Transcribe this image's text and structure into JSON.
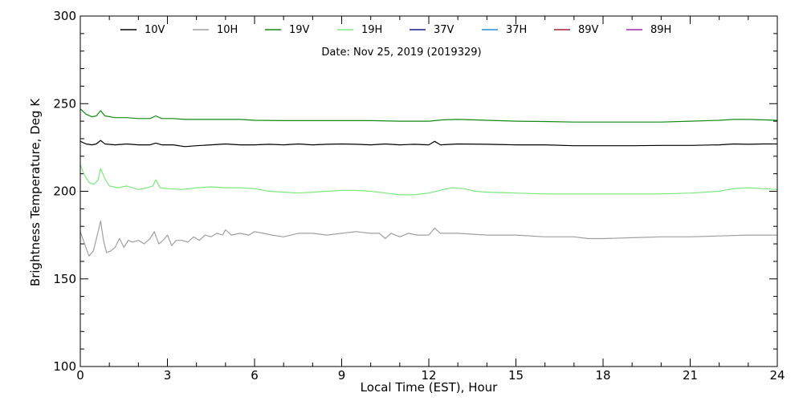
{
  "chart_data": {
    "type": "line",
    "subtitle": "Date: Nov 25, 2019 (2019329)",
    "xlabel": "Local Time (EST), Hour",
    "ylabel": "Brightness Temperature, Deg K",
    "xlim": [
      0,
      24
    ],
    "ylim": [
      100,
      300
    ],
    "x_ticks": [
      "0",
      "3",
      "6",
      "9",
      "12",
      "15",
      "18",
      "21",
      "24"
    ],
    "y_ticks": [
      "100",
      "150",
      "200",
      "250",
      "300"
    ],
    "grid": false,
    "legend_position": "top",
    "series": [
      {
        "name": "10V",
        "color": "#000000",
        "points": [
          [
            0,
            228.5
          ],
          [
            0.2,
            227
          ],
          [
            0.4,
            226.5
          ],
          [
            0.55,
            227
          ],
          [
            0.7,
            229
          ],
          [
            0.85,
            227
          ],
          [
            1.2,
            226.5
          ],
          [
            1.6,
            227
          ],
          [
            2.0,
            226.5
          ],
          [
            2.4,
            226.5
          ],
          [
            2.6,
            227.5
          ],
          [
            2.8,
            226.5
          ],
          [
            3.2,
            226.5
          ],
          [
            3.6,
            225.5
          ],
          [
            4.0,
            226
          ],
          [
            4.5,
            226.5
          ],
          [
            5.0,
            227
          ],
          [
            5.5,
            226.5
          ],
          [
            6.0,
            226.5
          ],
          [
            6.5,
            226.8
          ],
          [
            7.0,
            226.5
          ],
          [
            7.5,
            227
          ],
          [
            8.0,
            226.5
          ],
          [
            8.5,
            226.8
          ],
          [
            9.0,
            227
          ],
          [
            9.5,
            226.8
          ],
          [
            10.0,
            226.5
          ],
          [
            10.5,
            227
          ],
          [
            11.0,
            226.5
          ],
          [
            11.5,
            226.8
          ],
          [
            12.0,
            226.5
          ],
          [
            12.2,
            228.5
          ],
          [
            12.4,
            226.5
          ],
          [
            13.0,
            227
          ],
          [
            14.0,
            226.8
          ],
          [
            15.0,
            226.5
          ],
          [
            16.0,
            226.5
          ],
          [
            17.0,
            226
          ],
          [
            17.5,
            226
          ],
          [
            18.0,
            226
          ],
          [
            19.0,
            226
          ],
          [
            20.0,
            226.2
          ],
          [
            21.0,
            226.2
          ],
          [
            22.0,
            226.5
          ],
          [
            22.5,
            227
          ],
          [
            23.0,
            226.8
          ],
          [
            23.5,
            227
          ],
          [
            24.0,
            227
          ]
        ]
      },
      {
        "name": "10H",
        "color": "#a0a0a0",
        "points": [
          [
            0,
            177
          ],
          [
            0.15,
            170
          ],
          [
            0.3,
            163
          ],
          [
            0.45,
            166
          ],
          [
            0.6,
            176
          ],
          [
            0.7,
            183
          ],
          [
            0.8,
            172
          ],
          [
            0.9,
            165
          ],
          [
            1.05,
            166
          ],
          [
            1.2,
            168
          ],
          [
            1.35,
            173
          ],
          [
            1.5,
            168
          ],
          [
            1.65,
            172
          ],
          [
            1.8,
            171
          ],
          [
            2.0,
            172
          ],
          [
            2.2,
            170
          ],
          [
            2.4,
            173
          ],
          [
            2.55,
            177
          ],
          [
            2.7,
            170
          ],
          [
            2.85,
            172
          ],
          [
            3.0,
            175
          ],
          [
            3.15,
            169
          ],
          [
            3.3,
            172
          ],
          [
            3.5,
            172
          ],
          [
            3.7,
            171
          ],
          [
            3.9,
            174
          ],
          [
            4.1,
            172
          ],
          [
            4.3,
            175
          ],
          [
            4.5,
            174
          ],
          [
            4.7,
            176
          ],
          [
            4.9,
            175
          ],
          [
            5.0,
            178
          ],
          [
            5.2,
            175
          ],
          [
            5.5,
            176
          ],
          [
            5.8,
            175
          ],
          [
            6.0,
            177
          ],
          [
            6.3,
            176
          ],
          [
            6.6,
            175
          ],
          [
            7.0,
            174
          ],
          [
            7.5,
            176
          ],
          [
            8.0,
            176
          ],
          [
            8.5,
            175
          ],
          [
            9.0,
            176
          ],
          [
            9.5,
            177
          ],
          [
            10.0,
            176
          ],
          [
            10.3,
            176
          ],
          [
            10.5,
            173
          ],
          [
            10.7,
            176
          ],
          [
            11.0,
            174
          ],
          [
            11.3,
            176
          ],
          [
            11.6,
            175
          ],
          [
            12.0,
            175
          ],
          [
            12.2,
            179
          ],
          [
            12.4,
            176
          ],
          [
            13.0,
            176
          ],
          [
            14.0,
            175
          ],
          [
            15.0,
            175
          ],
          [
            16.0,
            174
          ],
          [
            17.0,
            174
          ],
          [
            17.5,
            173
          ],
          [
            18.0,
            173
          ],
          [
            19.0,
            173.5
          ],
          [
            20.0,
            174
          ],
          [
            21.0,
            174
          ],
          [
            22.0,
            174.5
          ],
          [
            23.0,
            175
          ],
          [
            24.0,
            175
          ]
        ]
      },
      {
        "name": "19V",
        "color": "#138a13",
        "points": [
          [
            0,
            247
          ],
          [
            0.2,
            244
          ],
          [
            0.4,
            242.5
          ],
          [
            0.55,
            243
          ],
          [
            0.7,
            246
          ],
          [
            0.85,
            243
          ],
          [
            1.2,
            242
          ],
          [
            1.6,
            242
          ],
          [
            2.0,
            241.5
          ],
          [
            2.4,
            241.5
          ],
          [
            2.6,
            243
          ],
          [
            2.8,
            241.5
          ],
          [
            3.2,
            241.5
          ],
          [
            3.6,
            241
          ],
          [
            4.0,
            241
          ],
          [
            4.5,
            241
          ],
          [
            5.0,
            241
          ],
          [
            5.5,
            241
          ],
          [
            6.0,
            240.5
          ],
          [
            7.0,
            240.3
          ],
          [
            8.0,
            240.3
          ],
          [
            9.0,
            240.3
          ],
          [
            10.0,
            240.3
          ],
          [
            11.0,
            240
          ],
          [
            12.0,
            240
          ],
          [
            12.5,
            240.8
          ],
          [
            13.0,
            241
          ],
          [
            13.5,
            240.8
          ],
          [
            14.0,
            240.5
          ],
          [
            15.0,
            240
          ],
          [
            16.0,
            239.8
          ],
          [
            17.0,
            239.5
          ],
          [
            18.0,
            239.5
          ],
          [
            19.0,
            239.5
          ],
          [
            20.0,
            239.5
          ],
          [
            21.0,
            240
          ],
          [
            22.0,
            240.5
          ],
          [
            22.5,
            241
          ],
          [
            23.0,
            241
          ],
          [
            24.0,
            240.5
          ]
        ]
      },
      {
        "name": "19H",
        "color": "#7de87d",
        "points": [
          [
            0,
            215
          ],
          [
            0.15,
            209
          ],
          [
            0.3,
            205
          ],
          [
            0.45,
            204
          ],
          [
            0.6,
            206
          ],
          [
            0.7,
            213
          ],
          [
            0.85,
            207
          ],
          [
            1.0,
            203
          ],
          [
            1.3,
            202
          ],
          [
            1.6,
            203
          ],
          [
            2.0,
            201
          ],
          [
            2.3,
            202
          ],
          [
            2.5,
            203
          ],
          [
            2.6,
            206.5
          ],
          [
            2.75,
            202
          ],
          [
            3.0,
            201.5
          ],
          [
            3.5,
            201
          ],
          [
            4.0,
            202
          ],
          [
            4.5,
            202.5
          ],
          [
            5.0,
            202
          ],
          [
            5.5,
            202
          ],
          [
            6.0,
            201.5
          ],
          [
            6.5,
            200
          ],
          [
            7.0,
            199.5
          ],
          [
            7.5,
            199
          ],
          [
            8.0,
            199.5
          ],
          [
            8.5,
            200
          ],
          [
            9.0,
            200.5
          ],
          [
            9.5,
            200.5
          ],
          [
            10.0,
            200
          ],
          [
            10.5,
            199
          ],
          [
            11.0,
            198
          ],
          [
            11.5,
            198
          ],
          [
            12.0,
            199
          ],
          [
            12.5,
            201
          ],
          [
            12.8,
            202
          ],
          [
            13.2,
            201.5
          ],
          [
            13.6,
            200
          ],
          [
            14.0,
            199.5
          ],
          [
            15.0,
            199
          ],
          [
            16.0,
            198.5
          ],
          [
            17.0,
            198.5
          ],
          [
            18.0,
            198.5
          ],
          [
            19.0,
            198.5
          ],
          [
            20.0,
            198.5
          ],
          [
            21.0,
            199
          ],
          [
            22.0,
            200
          ],
          [
            22.5,
            201.5
          ],
          [
            23.0,
            202
          ],
          [
            23.5,
            201.5
          ],
          [
            24.0,
            201
          ]
        ]
      },
      {
        "name": "37V",
        "color": "#1a1a8a",
        "points": []
      },
      {
        "name": "37H",
        "color": "#2a8fd0",
        "points": []
      },
      {
        "name": "89V",
        "color": "#a0203a",
        "points": []
      },
      {
        "name": "89H",
        "color": "#9a2aa8",
        "points": []
      }
    ]
  }
}
